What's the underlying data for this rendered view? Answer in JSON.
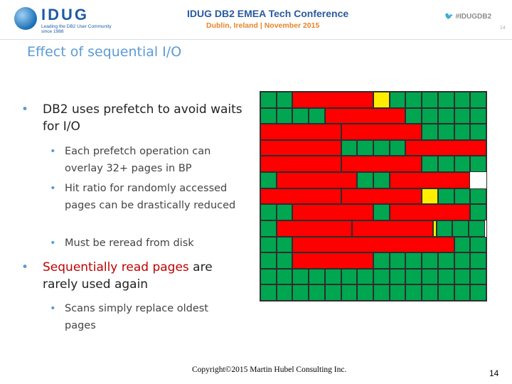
{
  "header": {
    "logo_text": "IDUG",
    "logo_tagline": "Leading the DB2 User Community since 1988",
    "conference_title": "IDUG DB2 EMEA Tech Conference",
    "conference_subtitle": "Dublin, Ireland  |  November 2015",
    "hashtag": "#IDUGDB2",
    "page_small": "14"
  },
  "slide": {
    "title": "Effect of sequential I/O",
    "bullets": [
      {
        "text": "DB2 uses prefetch to avoid waits for I/O",
        "sub": [
          "Each prefetch operation can overlay 32+ pages in BP",
          "Hit ratio for randomly accessed pages can be drastically reduced",
          "Must be reread from disk"
        ]
      },
      {
        "text_red": "Sequentially read pages",
        "text_rest": " are rarely used again",
        "sub": [
          "Scans simply replace oldest pages"
        ]
      }
    ],
    "bullet_glyph": "•"
  },
  "buffer_pool": {
    "rows": 13,
    "cols": 14,
    "colors": {
      "green": "#00a650",
      "red": "#ff0000",
      "yellow": "#ffee00"
    },
    "layout": [
      [
        "g",
        "g",
        "r:5",
        "y",
        "g",
        "g",
        "g",
        "g",
        "g",
        "g"
      ],
      [
        "g",
        "g",
        "g",
        "g",
        "r:5",
        "g",
        "g",
        "g",
        "g",
        "g"
      ],
      [
        "r:5",
        "r:5",
        "g",
        "g",
        "g",
        "g"
      ],
      [
        "r:5",
        "g",
        "g",
        "g",
        "g",
        "r:5"
      ],
      [
        "r:5",
        "r:5",
        "g",
        "g",
        "g",
        "g"
      ],
      [
        "g",
        "r:5",
        "g",
        "g",
        "r:5"
      ],
      [
        "r:5",
        "r:5",
        "y",
        "g",
        "g",
        "g"
      ],
      [
        "g",
        "g",
        "r:5",
        "g",
        "r:5",
        "g"
      ],
      [
        "g",
        "r:4.7",
        "r:5",
        "y:0.2",
        "g",
        "g",
        "g"
      ],
      [
        "g",
        "g",
        "r:10",
        "g",
        "g"
      ],
      [
        "g",
        "g",
        "r:5",
        "g",
        "g",
        "g",
        "g",
        "g",
        "g",
        "g"
      ],
      [
        "g",
        "g",
        "g",
        "g",
        "g",
        "g",
        "g",
        "g",
        "g",
        "g",
        "g",
        "g",
        "g",
        "g"
      ],
      [
        "g",
        "g",
        "g",
        "g",
        "g",
        "g",
        "g",
        "g",
        "g",
        "g",
        "g",
        "g",
        "g",
        "g"
      ]
    ]
  },
  "footer": {
    "copyright": "Copyright©2015 Martin Hubel Consulting Inc.",
    "page_number": "14"
  }
}
